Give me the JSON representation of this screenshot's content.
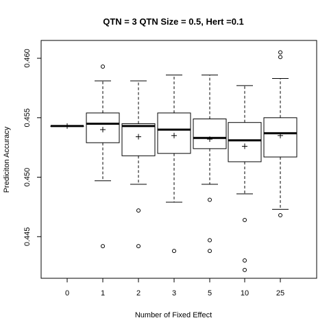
{
  "chart_data": {
    "type": "boxplot",
    "title": "QTN = 3 QTN Size = 0.5, Hert =0.1",
    "xlabel": "Number of Fixed Effect",
    "ylabel": "Prediciton Accuracy",
    "ylim": [
      0.4415,
      0.4615
    ],
    "yticks": [
      0.445,
      0.45,
      0.455,
      0.46
    ],
    "ytick_labels": [
      "0.445",
      "0.450",
      "0.455",
      "0.460"
    ],
    "categories": [
      "0",
      "1",
      "2",
      "3",
      "5",
      "10",
      "25"
    ],
    "boxes": [
      {
        "category": "0",
        "whisker_low": 0.4543,
        "q1": 0.4543,
        "median": 0.4543,
        "q3": 0.4543,
        "whisker_high": 0.4543,
        "mean": 0.4543,
        "outliers": []
      },
      {
        "category": "1",
        "whisker_low": 0.4497,
        "q1": 0.4529,
        "median": 0.4545,
        "q3": 0.4554,
        "whisker_high": 0.4581,
        "mean": 0.454,
        "outliers": [
          0.4442,
          0.4593
        ]
      },
      {
        "category": "2",
        "whisker_low": 0.4494,
        "q1": 0.4518,
        "median": 0.4543,
        "q3": 0.4545,
        "whisker_high": 0.4581,
        "mean": 0.4534,
        "outliers": [
          0.4472,
          0.4442
        ]
      },
      {
        "category": "3",
        "whisker_low": 0.4479,
        "q1": 0.452,
        "median": 0.454,
        "q3": 0.4554,
        "whisker_high": 0.4586,
        "mean": 0.4535,
        "outliers": [
          0.4438
        ]
      },
      {
        "category": "5",
        "whisker_low": 0.4494,
        "q1": 0.4524,
        "median": 0.4533,
        "q3": 0.4549,
        "whisker_high": 0.4586,
        "mean": 0.4532,
        "outliers": [
          0.4481,
          0.4447,
          0.4438
        ]
      },
      {
        "category": "10",
        "whisker_low": 0.4486,
        "q1": 0.4513,
        "median": 0.4531,
        "q3": 0.4546,
        "whisker_high": 0.4577,
        "mean": 0.4526,
        "outliers": [
          0.4464,
          0.443,
          0.4422
        ]
      },
      {
        "category": "25",
        "whisker_low": 0.4473,
        "q1": 0.4517,
        "median": 0.4537,
        "q3": 0.455,
        "whisker_high": 0.4583,
        "mean": 0.4535,
        "outliers": [
          0.4605,
          0.4601,
          0.4468
        ]
      }
    ],
    "grid": false,
    "legend": "none"
  }
}
